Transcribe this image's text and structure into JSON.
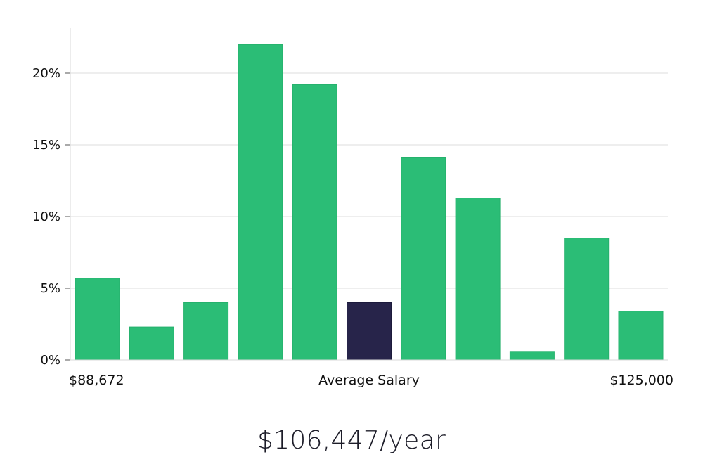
{
  "chart_data": {
    "type": "bar",
    "title": "",
    "xlabel": "Average Salary",
    "ylabel": "",
    "x_min_label": "$88,672",
    "x_max_label": "$125,000",
    "ylim": [
      0,
      23
    ],
    "yticks": [
      0,
      5,
      10,
      15,
      20
    ],
    "ytick_labels": [
      "0%",
      "5%",
      "10%",
      "15%",
      "20%"
    ],
    "grid": true,
    "values": [
      5.7,
      2.3,
      4.0,
      22.0,
      19.2,
      4.0,
      14.1,
      11.3,
      0.6,
      8.5,
      3.4
    ],
    "highlight_index": 5,
    "colors": {
      "bar": "#2bbd76",
      "highlight": "#27244a",
      "grid": "#dcdcdc",
      "axis": "#d8d8d8"
    }
  },
  "summary": {
    "salary": "$106,447/year"
  }
}
